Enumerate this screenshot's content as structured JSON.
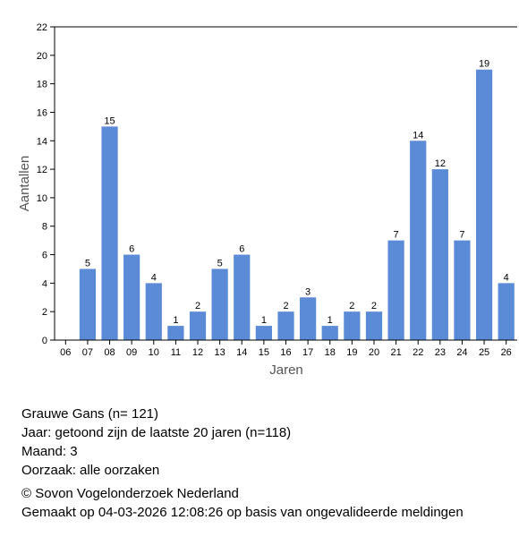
{
  "chart_data": {
    "type": "bar",
    "categories": [
      "06",
      "07",
      "08",
      "09",
      "10",
      "11",
      "12",
      "13",
      "14",
      "15",
      "16",
      "17",
      "18",
      "19",
      "20",
      "21",
      "22",
      "23",
      "24",
      "25",
      "26"
    ],
    "values": [
      0,
      5,
      15,
      6,
      4,
      1,
      2,
      5,
      6,
      1,
      2,
      3,
      1,
      2,
      2,
      7,
      14,
      12,
      7,
      19,
      4
    ],
    "data_labels": [
      "",
      "5",
      "15",
      "6",
      "4",
      "1",
      "2",
      "5",
      "6",
      "1",
      "2",
      "3",
      "1",
      "2",
      "2",
      "7",
      "14",
      "12",
      "7",
      "19",
      "4"
    ],
    "xlabel": "Jaren",
    "ylabel": "Aantallen",
    "ylim": [
      0,
      22
    ],
    "yticks": [
      "0",
      "2",
      "4",
      "6",
      "8",
      "10",
      "12",
      "14",
      "16",
      "18",
      "20",
      "22"
    ],
    "bar_color": "#5b8bd6",
    "grid": false
  },
  "info": {
    "species": "Grauwe Gans  (n= 121)",
    "year": "Jaar: getoond zijn de laatste 20 jaren (n=118)",
    "month": "Maand: 3",
    "cause": "Oorzaak: alle oorzaken",
    "copyright": "© Sovon Vogelonderzoek Nederland",
    "made": "Gemaakt op 04-03-2026 12:08:26 op basis van ongevalideerde meldingen"
  }
}
